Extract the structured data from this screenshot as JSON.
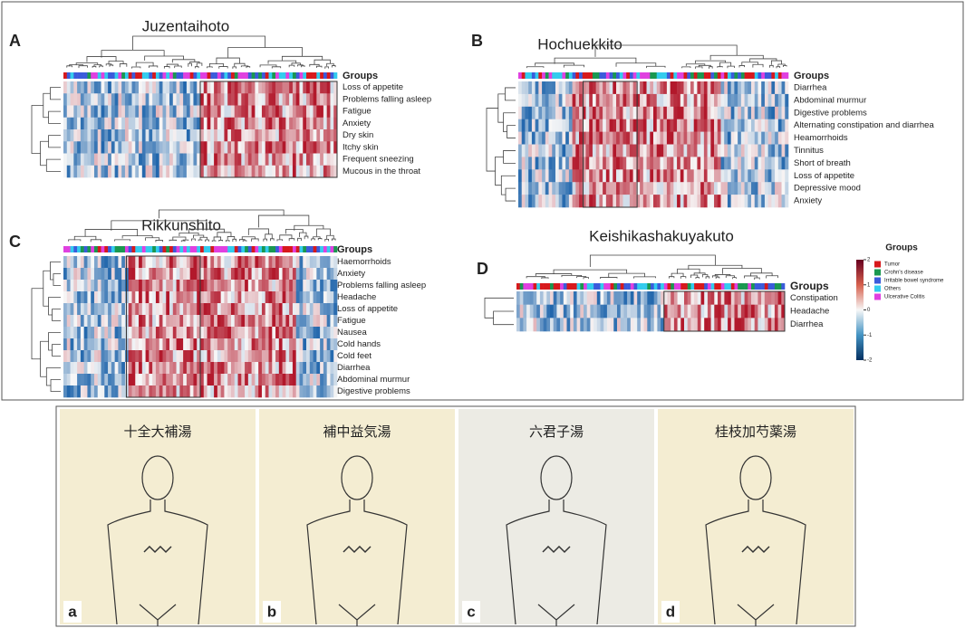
{
  "panels": [
    {
      "letter": "A",
      "title": "Juzentaihoto",
      "groups_label": "Groups",
      "rows": [
        "Loss of appetite",
        "Problems falling asleep",
        "Fatigue",
        "Anxiety",
        "Dry skin",
        "Itchy skin",
        "Frequent sneezing",
        "Mucous in the throat"
      ]
    },
    {
      "letter": "B",
      "title": "Hochuekkito",
      "groups_label": "Groups",
      "rows": [
        "Diarrhea",
        "Abdominal murmur",
        "Digestive problems",
        "Alternating constipation and diarrhea",
        "Heamorrhoids",
        "Tinnitus",
        "Short of breath",
        "Loss of appetite",
        "Depressive mood",
        "Anxiety"
      ]
    },
    {
      "letter": "C",
      "title": "Rikkunshito",
      "groups_label": "Groups",
      "rows": [
        "Haemorrhoids",
        "Anxiety",
        "Problems falling asleep",
        "Headache",
        "Loss of appetite",
        "Fatigue",
        "Nausea",
        "Cold hands",
        "Cold feet",
        "Diarrhea",
        "Abdominal murmur",
        "Digestive problems"
      ]
    },
    {
      "letter": "D",
      "title": "Keishikashakuyakuto",
      "groups_label": "Groups",
      "rows": [
        "Constipation",
        "Headache",
        "Diarrhea"
      ]
    }
  ],
  "legend": {
    "title": "Groups",
    "scale_ticks": [
      2,
      1,
      0,
      -1,
      -2
    ],
    "groups": [
      {
        "name": "Tumor",
        "color": "#d7191c"
      },
      {
        "name": "Crohn's disease",
        "color": "#1a9850"
      },
      {
        "name": "Irritable bowel syndrome",
        "color": "#3b5bdb"
      },
      {
        "name": "Others",
        "color": "#33ccee"
      },
      {
        "name": "Ulcerative Colitis",
        "color": "#e040e0"
      }
    ]
  },
  "illustrations": [
    {
      "letter": "a",
      "title": "十全大補湯"
    },
    {
      "letter": "b",
      "title": "補中益気湯"
    },
    {
      "letter": "c",
      "title": "六君子湯"
    },
    {
      "letter": "d",
      "title": "桂枝加芍薬湯"
    }
  ]
}
